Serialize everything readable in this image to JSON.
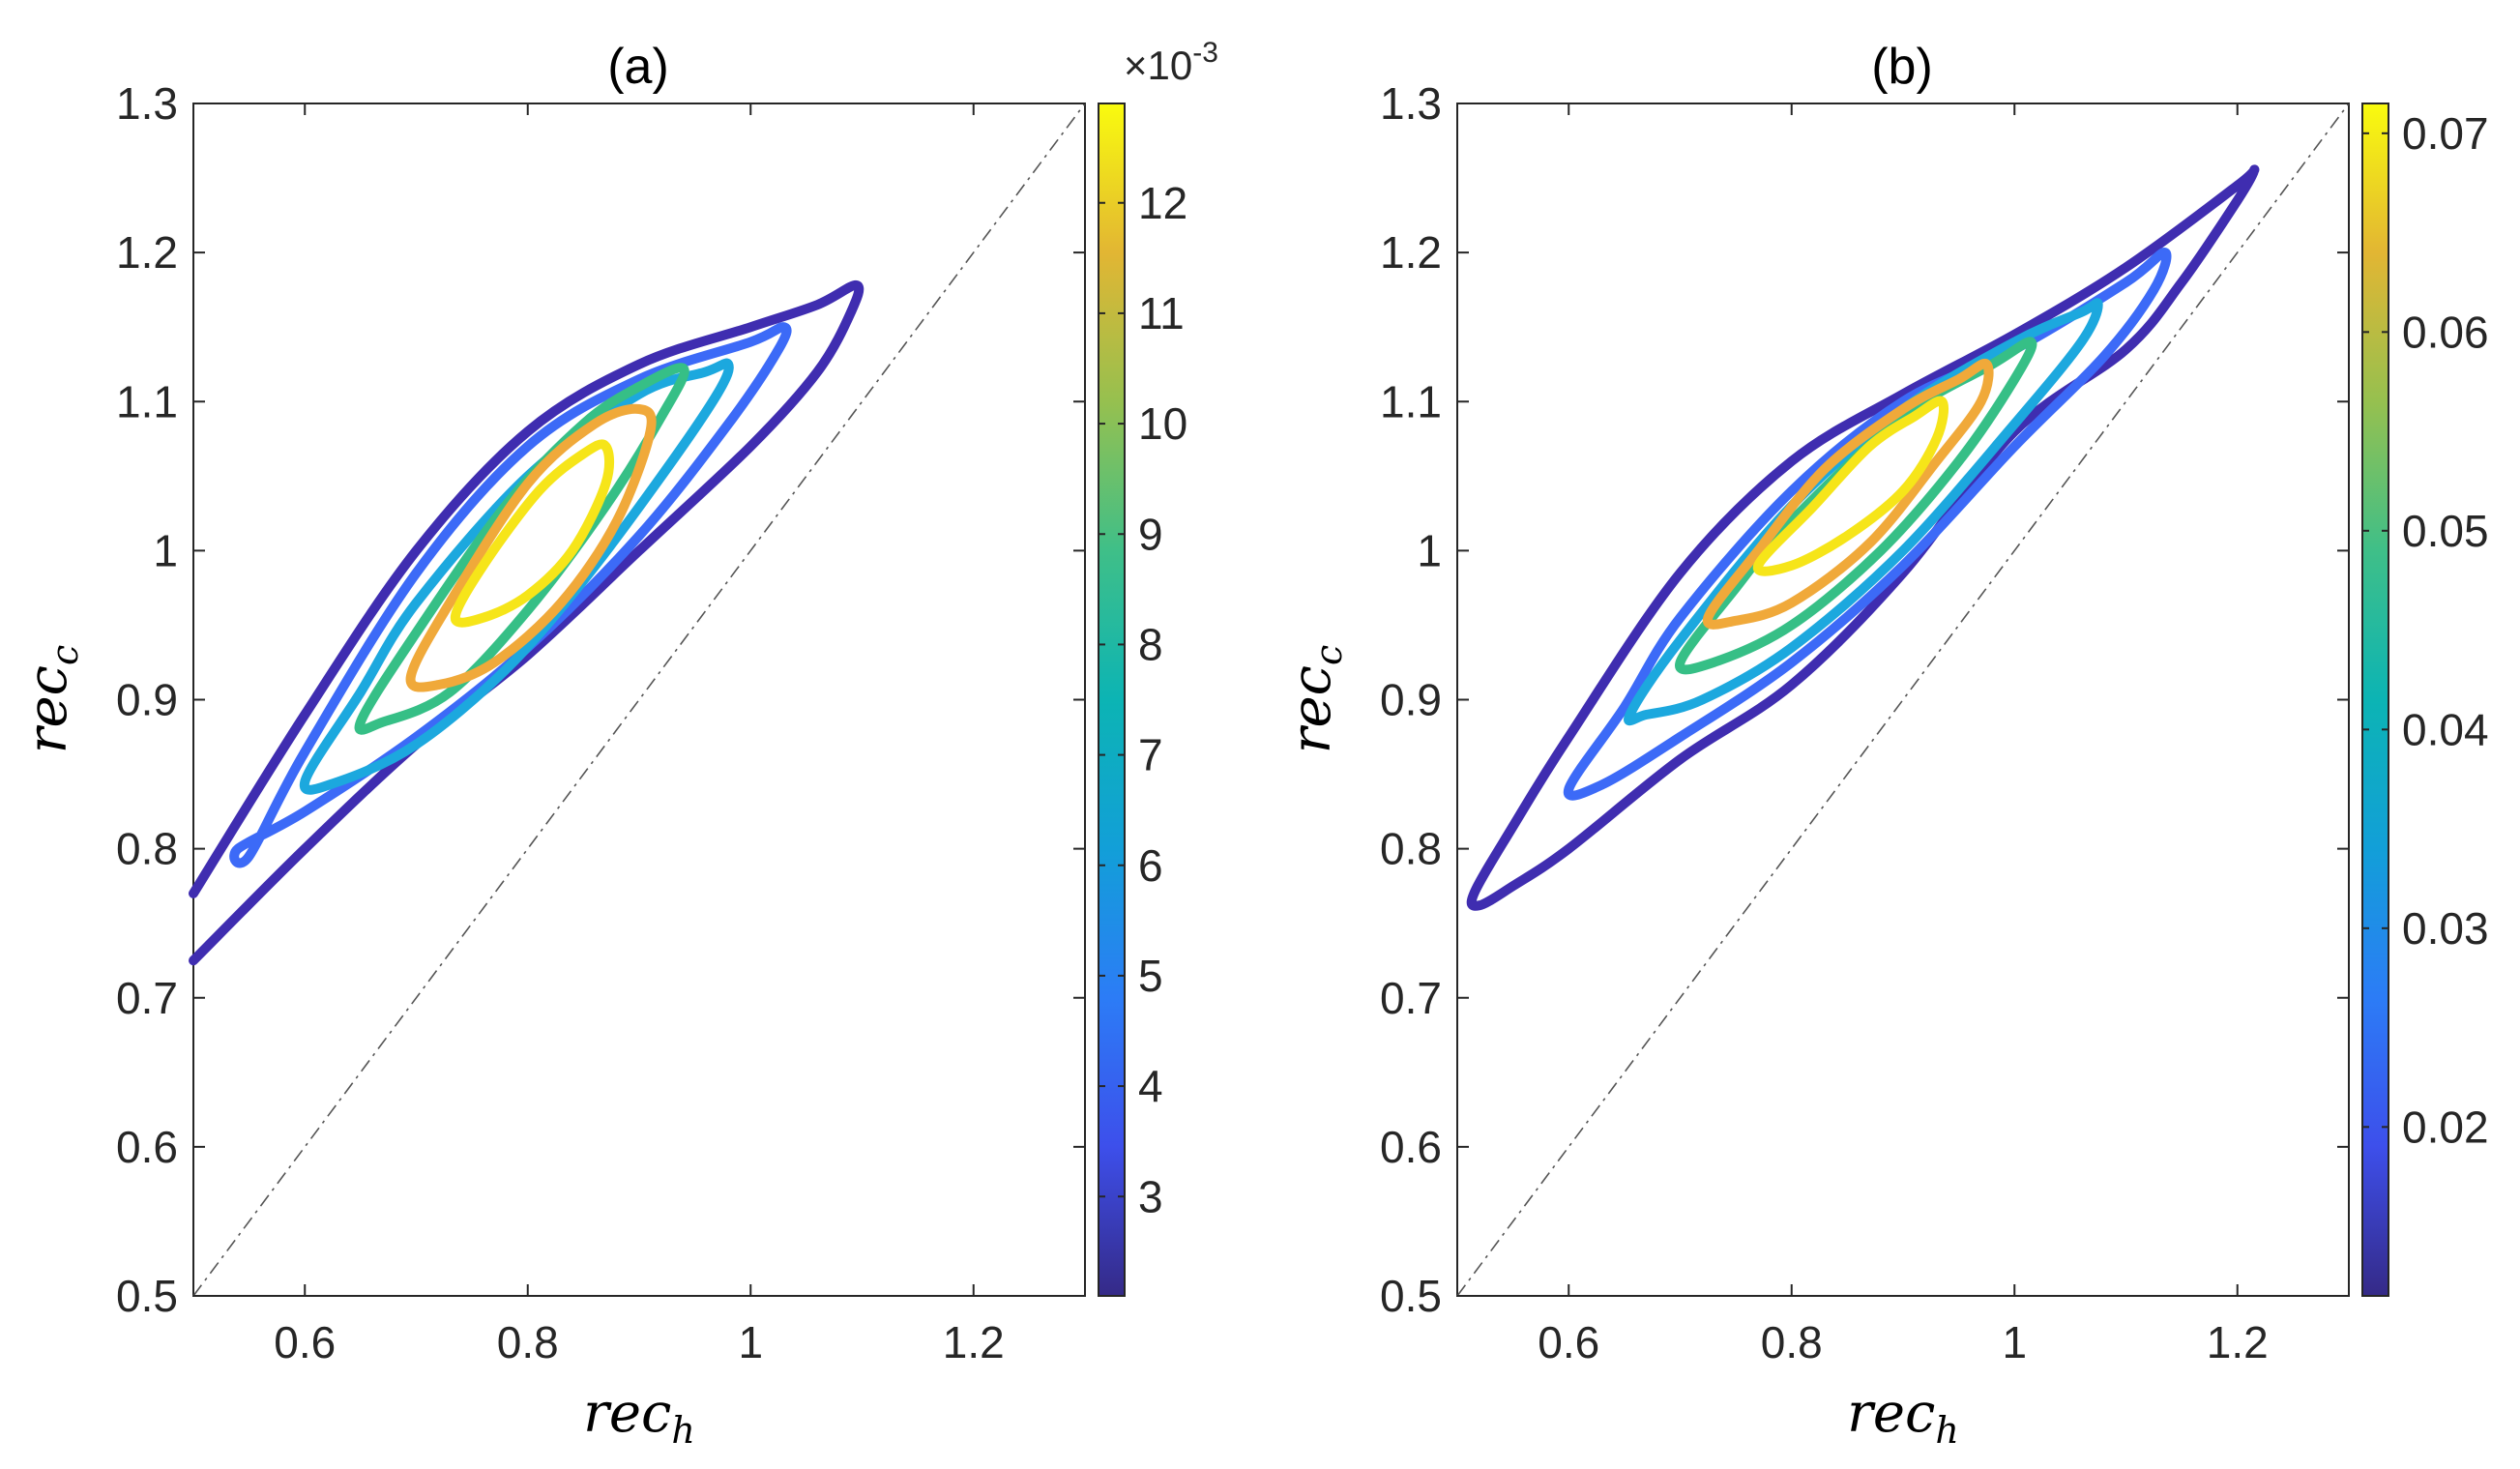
{
  "chart_data": [
    {
      "type": "contour",
      "panel": "(a)",
      "title": "(a)",
      "xlabel": {
        "base": "rec",
        "sub": "h"
      },
      "ylabel": {
        "base": "rec",
        "sub": "c"
      },
      "xlim": [
        0.5,
        1.3
      ],
      "ylim": [
        0.5,
        1.3
      ],
      "xticks": [
        "0.6",
        "0.8",
        "1",
        "1.2"
      ],
      "xtick_values": [
        0.6,
        0.8,
        1.0,
        1.2
      ],
      "yticks": [
        "0.5",
        "0.6",
        "0.7",
        "0.8",
        "0.9",
        "1",
        "1.1",
        "1.2",
        "1.3"
      ],
      "ytick_values": [
        0.5,
        0.6,
        0.7,
        0.8,
        0.9,
        1.0,
        1.1,
        1.2,
        1.3
      ],
      "reference_line": {
        "from": [
          0.5,
          0.5
        ],
        "to": [
          1.3,
          1.3
        ],
        "style": "dashed"
      },
      "colorbar": {
        "min": 2.1,
        "max": 12.9,
        "ticks": [
          "3",
          "4",
          "5",
          "6",
          "7",
          "8",
          "9",
          "10",
          "11",
          "12"
        ],
        "tick_values": [
          3,
          4,
          5,
          6,
          7,
          8,
          9,
          10,
          11,
          12
        ],
        "exponent_label": {
          "base": "×10",
          "exp": "-3"
        }
      },
      "contours": [
        {
          "level": 2.2,
          "color": "#3F2DB0",
          "open": true,
          "points": [
            [
              0.5,
              0.77
            ],
            [
              0.6,
              0.89
            ],
            [
              0.7,
              1.0
            ],
            [
              0.8,
              1.08
            ],
            [
              0.9,
              1.125
            ],
            [
              1.0,
              1.15
            ],
            [
              1.06,
              1.165
            ],
            [
              1.095,
              1.178
            ],
            [
              1.09,
              1.16
            ],
            [
              1.06,
              1.12
            ],
            [
              1.0,
              1.07
            ],
            [
              0.9,
              1.0
            ],
            [
              0.8,
              0.93
            ],
            [
              0.7,
              0.87
            ],
            [
              0.6,
              0.8
            ],
            [
              0.5,
              0.725
            ]
          ]
        },
        {
          "level": 4.0,
          "color": "#3C6AF7",
          "points": [
            [
              0.55,
              0.795
            ],
            [
              0.6,
              0.865
            ],
            [
              0.7,
              0.985
            ],
            [
              0.8,
              1.07
            ],
            [
              0.9,
              1.115
            ],
            [
              1.0,
              1.14
            ],
            [
              1.03,
              1.15
            ],
            [
              1.025,
              1.135
            ],
            [
              0.98,
              1.085
            ],
            [
              0.9,
              1.01
            ],
            [
              0.8,
              0.935
            ],
            [
              0.7,
              0.875
            ],
            [
              0.6,
              0.825
            ],
            [
              0.54,
              0.8
            ]
          ]
        },
        {
          "level": 6.0,
          "color": "#1CA8DE",
          "points": [
            [
              0.6,
              0.845
            ],
            [
              0.65,
              0.905
            ],
            [
              0.7,
              0.965
            ],
            [
              0.8,
              1.05
            ],
            [
              0.9,
              1.105
            ],
            [
              0.96,
              1.12
            ],
            [
              0.98,
              1.125
            ],
            [
              0.97,
              1.105
            ],
            [
              0.92,
              1.05
            ],
            [
              0.85,
              0.98
            ],
            [
              0.78,
              0.92
            ],
            [
              0.7,
              0.87
            ],
            [
              0.63,
              0.845
            ]
          ]
        },
        {
          "level": 8.0,
          "color": "#36BF86",
          "points": [
            [
              0.65,
              0.885
            ],
            [
              0.7,
              0.945
            ],
            [
              0.78,
              1.03
            ],
            [
              0.85,
              1.085
            ],
            [
              0.9,
              1.11
            ],
            [
              0.94,
              1.122
            ],
            [
              0.92,
              1.09
            ],
            [
              0.87,
              1.03
            ],
            [
              0.8,
              0.96
            ],
            [
              0.73,
              0.905
            ],
            [
              0.67,
              0.885
            ]
          ]
        },
        {
          "level": 10.5,
          "color": "#F0A93A",
          "points": [
            [
              0.695,
              0.915
            ],
            [
              0.73,
              0.965
            ],
            [
              0.8,
              1.045
            ],
            [
              0.86,
              1.085
            ],
            [
              0.9,
              1.095
            ],
            [
              0.91,
              1.08
            ],
            [
              0.88,
              1.02
            ],
            [
              0.83,
              0.965
            ],
            [
              0.77,
              0.925
            ],
            [
              0.72,
              0.91
            ]
          ]
        },
        {
          "level": 12.5,
          "color": "#F6E519",
          "points": [
            [
              0.735,
              0.955
            ],
            [
              0.76,
              0.99
            ],
            [
              0.81,
              1.04
            ],
            [
              0.85,
              1.065
            ],
            [
              0.87,
              1.07
            ],
            [
              0.87,
              1.045
            ],
            [
              0.84,
              1.0
            ],
            [
              0.8,
              0.97
            ],
            [
              0.76,
              0.955
            ]
          ]
        }
      ]
    },
    {
      "type": "contour",
      "panel": "(b)",
      "title": "(b)",
      "xlabel": {
        "base": "rec",
        "sub": "h"
      },
      "ylabel": {
        "base": "rec",
        "sub": "c"
      },
      "xlim": [
        0.5,
        1.3
      ],
      "ylim": [
        0.5,
        1.3
      ],
      "xticks": [
        "0.6",
        "0.8",
        "1",
        "1.2"
      ],
      "xtick_values": [
        0.6,
        0.8,
        1.0,
        1.2
      ],
      "yticks": [
        "0.5",
        "0.6",
        "0.7",
        "0.8",
        "0.9",
        "1",
        "1.1",
        "1.2",
        "1.3"
      ],
      "ytick_values": [
        0.5,
        0.6,
        0.7,
        0.8,
        0.9,
        1.0,
        1.1,
        1.2,
        1.3
      ],
      "reference_line": {
        "from": [
          0.5,
          0.5
        ],
        "to": [
          1.3,
          1.3
        ],
        "style": "dashed"
      },
      "colorbar": {
        "min": 0.0115,
        "max": 0.0715,
        "ticks": [
          "0.02",
          "0.03",
          "0.04",
          "0.05",
          "0.06",
          "0.07"
        ],
        "tick_values": [
          0.02,
          0.03,
          0.04,
          0.05,
          0.06,
          0.07
        ]
      },
      "contours": [
        {
          "level": 0.012,
          "color": "#3F2DB0",
          "points": [
            [
              0.515,
              0.77
            ],
            [
              0.55,
              0.815
            ],
            [
              0.6,
              0.875
            ],
            [
              0.7,
              0.985
            ],
            [
              0.8,
              1.06
            ],
            [
              0.9,
              1.105
            ],
            [
              1.0,
              1.145
            ],
            [
              1.1,
              1.19
            ],
            [
              1.2,
              1.245
            ],
            [
              1.215,
              1.255
            ],
            [
              1.2,
              1.235
            ],
            [
              1.15,
              1.18
            ],
            [
              1.1,
              1.135
            ],
            [
              1.0,
              1.08
            ],
            [
              0.9,
              0.985
            ],
            [
              0.8,
              0.91
            ],
            [
              0.7,
              0.86
            ],
            [
              0.6,
              0.8
            ],
            [
              0.55,
              0.775
            ],
            [
              0.52,
              0.762
            ]
          ]
        },
        {
          "level": 0.025,
          "color": "#3C6AF7",
          "points": [
            [
              0.6,
              0.84
            ],
            [
              0.65,
              0.895
            ],
            [
              0.7,
              0.955
            ],
            [
              0.8,
              1.04
            ],
            [
              0.9,
              1.1
            ],
            [
              1.0,
              1.135
            ],
            [
              1.1,
              1.18
            ],
            [
              1.135,
              1.2
            ],
            [
              1.125,
              1.175
            ],
            [
              1.08,
              1.13
            ],
            [
              1.0,
              1.07
            ],
            [
              0.9,
              0.99
            ],
            [
              0.8,
              0.925
            ],
            [
              0.7,
              0.875
            ],
            [
              0.63,
              0.843
            ]
          ]
        },
        {
          "level": 0.035,
          "color": "#1CA8DE",
          "points": [
            [
              0.655,
              0.89
            ],
            [
              0.7,
              0.94
            ],
            [
              0.8,
              1.03
            ],
            [
              0.9,
              1.095
            ],
            [
              1.0,
              1.14
            ],
            [
              1.06,
              1.16
            ],
            [
              1.075,
              1.165
            ],
            [
              1.06,
              1.14
            ],
            [
              1.0,
              1.085
            ],
            [
              0.9,
              1.0
            ],
            [
              0.8,
              0.935
            ],
            [
              0.72,
              0.9
            ],
            [
              0.67,
              0.89
            ]
          ]
        },
        {
          "level": 0.048,
          "color": "#36BF86",
          "points": [
            [
              0.7,
              0.925
            ],
            [
              0.75,
              0.975
            ],
            [
              0.8,
              1.02
            ],
            [
              0.9,
              1.09
            ],
            [
              0.98,
              1.125
            ],
            [
              1.015,
              1.14
            ],
            [
              1.0,
              1.115
            ],
            [
              0.95,
              1.06
            ],
            [
              0.88,
              1.0
            ],
            [
              0.8,
              0.95
            ],
            [
              0.73,
              0.925
            ]
          ]
        },
        {
          "level": 0.06,
          "color": "#F0A93A",
          "points": [
            [
              0.725,
              0.955
            ],
            [
              0.77,
              1.0
            ],
            [
              0.83,
              1.055
            ],
            [
              0.9,
              1.095
            ],
            [
              0.95,
              1.115
            ],
            [
              0.975,
              1.125
            ],
            [
              0.97,
              1.1
            ],
            [
              0.93,
              1.06
            ],
            [
              0.87,
              1.005
            ],
            [
              0.8,
              0.965
            ],
            [
              0.75,
              0.953
            ]
          ]
        },
        {
          "level": 0.07,
          "color": "#F6E519",
          "points": [
            [
              0.77,
              0.99
            ],
            [
              0.82,
              1.03
            ],
            [
              0.87,
              1.07
            ],
            [
              0.91,
              1.09
            ],
            [
              0.935,
              1.1
            ],
            [
              0.93,
              1.075
            ],
            [
              0.9,
              1.04
            ],
            [
              0.85,
              1.01
            ],
            [
              0.8,
              0.99
            ]
          ]
        }
      ]
    }
  ]
}
